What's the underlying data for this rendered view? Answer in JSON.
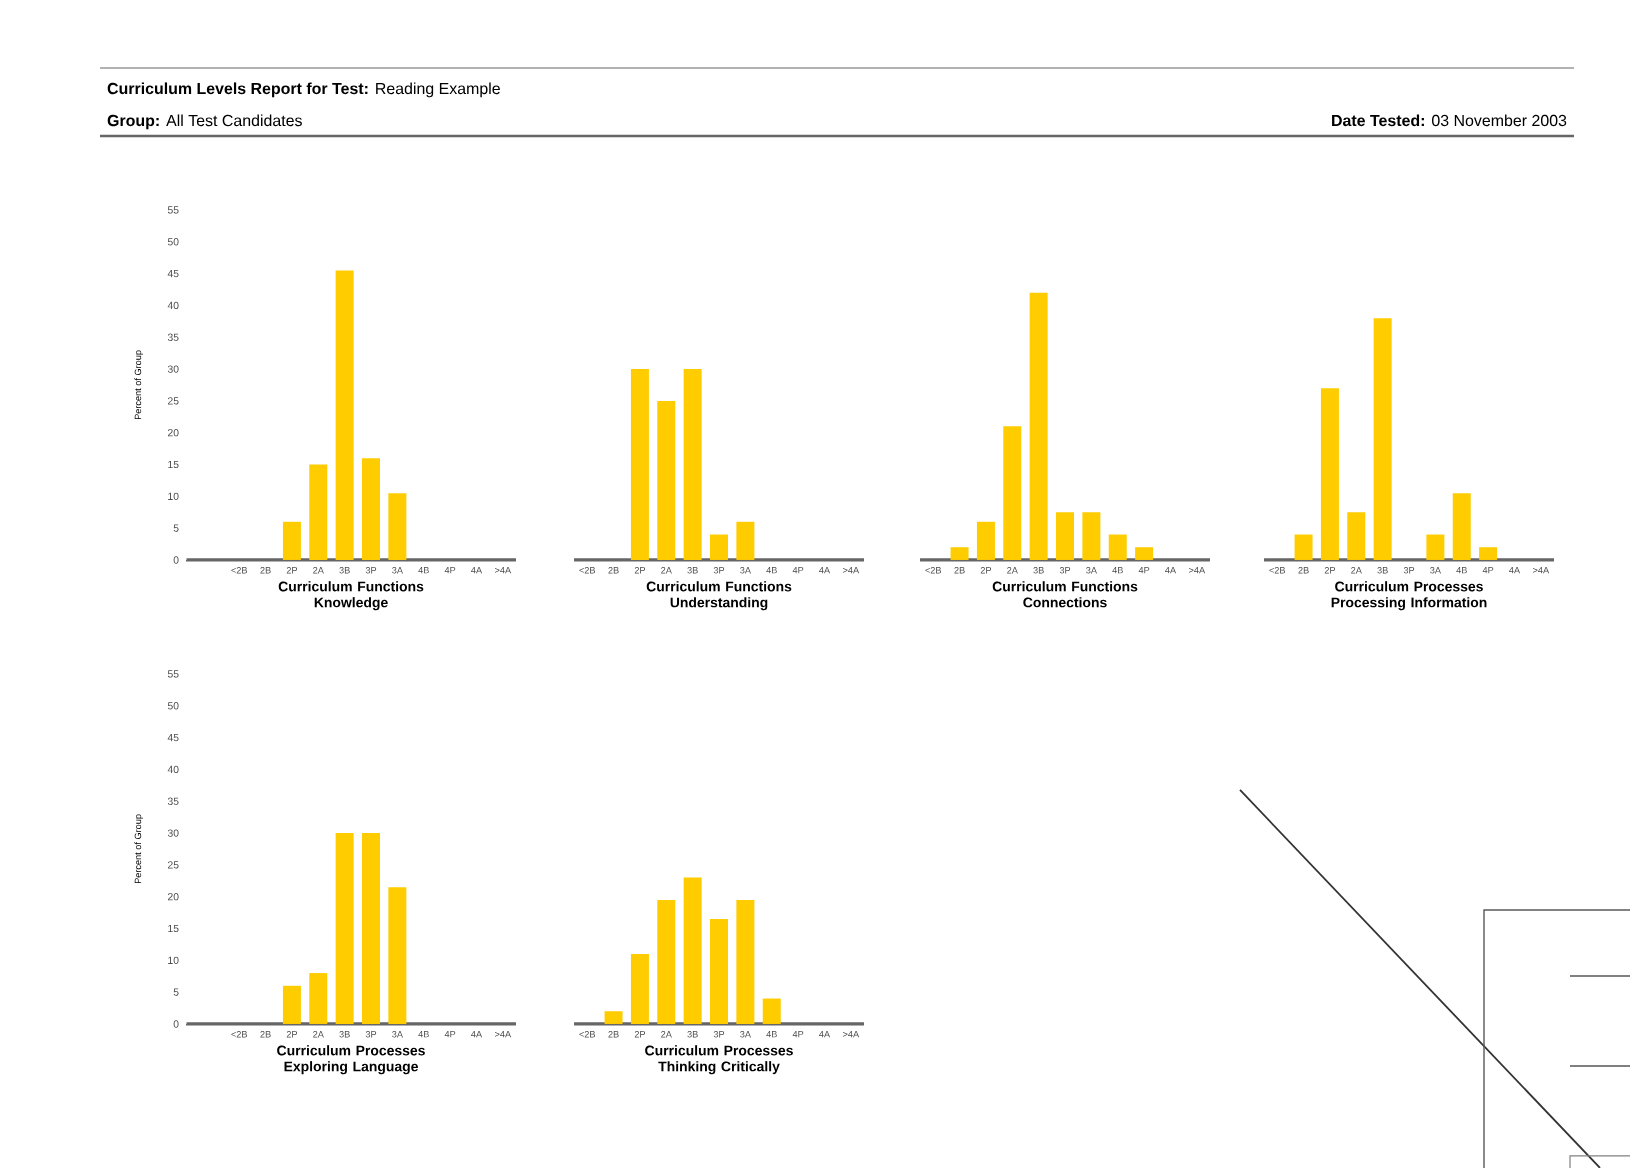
{
  "chart_data": [
    {
      "type": "bar",
      "title": "**Curriculum Levels Report for Test:** Reading Example",
      "subtitle": "**Group:** All Test Candidates",
      "annotations": [
        "**Date Tested:** 03 November 2003"
      ],
      "xlabel": "Curriculum Functions Knowledge",
      "ylabel": "Percent of Group",
      "categories": [
        "<2B",
        "2B",
        "2P",
        "2A",
        "3B",
        "3P",
        "3A",
        "4B",
        "4P",
        "4A",
        ">4A"
      ],
      "values": [
        0,
        0,
        6,
        15,
        45.5,
        16,
        10.5,
        0,
        0,
        0,
        0
      ],
      "color": "#ffcc00",
      "ylim": [
        0,
        55
      ],
      "yticks": [
        0,
        5,
        10,
        15,
        20,
        25,
        30,
        35,
        40,
        45,
        50,
        55
      ]
    },
    {
      "type": "bar",
      "xlabel": "Curriculum Functions Understanding",
      "categories": [
        "<2B",
        "2B",
        "2P",
        "2A",
        "3B",
        "3P",
        "3A",
        "4B",
        "4P",
        "4A",
        ">4A"
      ],
      "values": [
        0,
        0,
        30,
        25,
        30,
        4,
        6,
        0,
        0,
        0,
        0
      ],
      "color": "#ffcc00",
      "ylim": [
        0,
        55
      ],
      "tick_labels": "x"
    },
    {
      "type": "bar",
      "xlabel": "Curriculum Functions Connections",
      "categories": [
        "<2B",
        "2B",
        "2P",
        "2A",
        "3B",
        "3P",
        "3A",
        "4B",
        "4P",
        "4A",
        ">4A"
      ],
      "values": [
        0,
        2,
        6,
        21,
        42,
        7.5,
        7.5,
        4,
        2,
        0,
        0
      ],
      "color": "#ffcc00",
      "ylim": [
        0,
        55
      ],
      "tick_labels": "x"
    },
    {
      "type": "bar",
      "xlabel": "Curriculum Processes Processing Information",
      "categories": [
        "<2B",
        "2B",
        "2P",
        "2A",
        "3B",
        "3P",
        "3A",
        "4B",
        "4P",
        "4A",
        ">4A"
      ],
      "values": [
        0,
        4,
        27,
        7.5,
        38,
        0,
        4,
        10.5,
        2,
        0,
        0
      ],
      "color": "#ffcc00",
      "ylim": [
        0,
        55
      ],
      "tick_labels": "x"
    },
    {
      "type": "bar",
      "xlabel": "Curriculum Processes Exploring Language",
      "ylabel": "Percent of Group",
      "categories": [
        "<2B",
        "2B",
        "2P",
        "2A",
        "3B",
        "3P",
        "3A",
        "4B",
        "4P",
        "4A",
        ">4A"
      ],
      "values": [
        0,
        0,
        6,
        8,
        30,
        30,
        21.5,
        0,
        0,
        0,
        0
      ],
      "color": "#ffcc00",
      "ylim": [
        0,
        55
      ],
      "yticks": [
        0,
        5,
        10,
        15,
        20,
        25,
        30,
        35,
        40,
        45,
        50,
        55
      ]
    },
    {
      "type": "bar",
      "xlabel": "Curriculum Processes Thinking Critically",
      "categories": [
        "<2B",
        "2B",
        "2P",
        "2A",
        "3B",
        "3P",
        "3A",
        "4B",
        "4P",
        "4A",
        ">4A"
      ],
      "values": [
        0,
        2,
        11,
        19.5,
        23,
        16.5,
        19.5,
        4,
        0,
        0,
        0
      ],
      "color": "#ffcc00",
      "ylim": [
        0,
        55
      ],
      "tick_labels": "x"
    }
  ]
}
